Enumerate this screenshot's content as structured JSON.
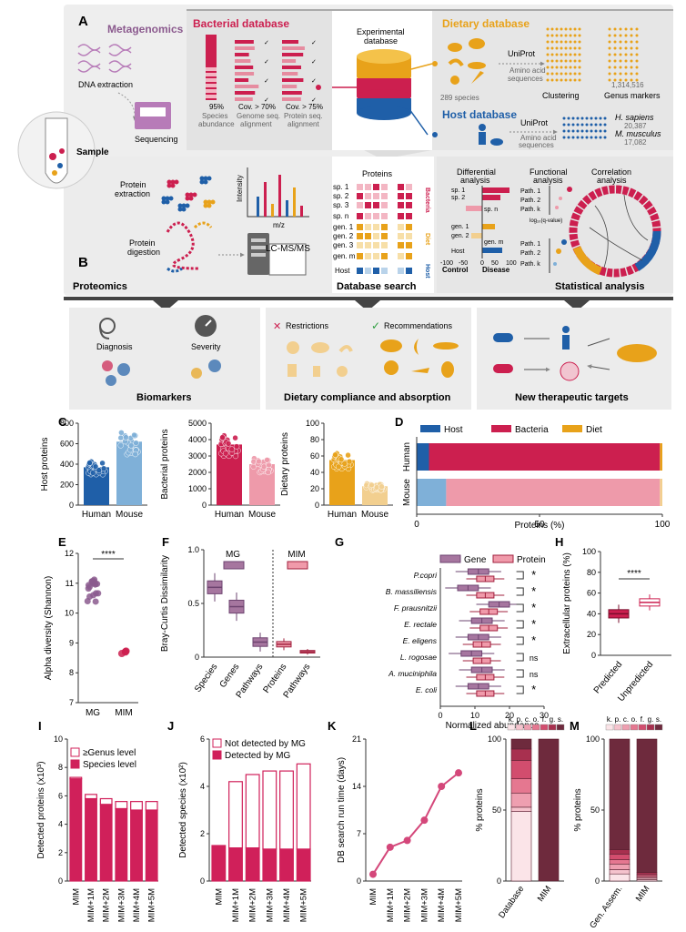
{
  "panel_letters": {
    "A": "A",
    "B": "B",
    "C": "C",
    "D": "D",
    "E": "E",
    "F": "F",
    "G": "G",
    "H": "H",
    "I": "I",
    "J": "J",
    "K": "K",
    "L": "L",
    "M": "M"
  },
  "top": {
    "metagenomics": "Metagenomics",
    "dna_extraction": "DNA extraction",
    "sequencing": "Sequencing",
    "sample": "Sample",
    "bacterial_db": "Bacterial database",
    "stage1_pct": "95%",
    "stage1_l1": "Species",
    "stage1_l2": "abundance",
    "stage2_pct": "Cov. > 70%",
    "stage2_l1": "Genome seq.",
    "stage2_l2": "alignment",
    "stage3_pct": "Cov. > 75%",
    "stage3_l1": "Protein seq.",
    "stage3_l2": "alignment",
    "exp_db_l1": "Experimental",
    "exp_db_l2": "database",
    "dietary_db": "Dietary database",
    "uniprot": "UniProt",
    "aa_l1": "Amino acid",
    "aa_l2": "sequences",
    "species_289": "289 species",
    "clustering": "Clustering",
    "genus_count": "1,314,516",
    "genus_markers": "Genus markers",
    "host_db": "Host database",
    "h_sapiens": "H. sapiens",
    "h_sapiens_n": "20,387",
    "m_musculus": "M. musculus",
    "m_musculus_n": "17,082",
    "protein_extraction": "Protein extraction",
    "protein_digestion": "Protein digestion",
    "intensity": "Intensity",
    "mz": "m/z",
    "lcms": "LC-MS/MS",
    "proteomics": "Proteomics",
    "proteins": "Proteins",
    "sp1": "sp. 1",
    "sp2": "sp. 2",
    "sp3": "sp. 3",
    "spn": "sp. n",
    "gen1": "gen. 1",
    "gen2": "gen. 2",
    "gen3": "gen. 3",
    "genm": "gen. m",
    "host": "Host",
    "side_bacteria": "Bacteria",
    "side_diet": "Diet",
    "side_host": "Host",
    "database_search": "Database search",
    "diff_l1": "Differential",
    "diff_l2": "analysis",
    "func_l1": "Functional",
    "func_l2": "analysis",
    "corr_l1": "Correlation",
    "corr_l2": "analysis",
    "path1": "Path. 1",
    "path2": "Path. 2",
    "pathk": "Path. k",
    "log10q": "log₁₀(q-value)",
    "control": "Control",
    "disease": "Disease",
    "ax_m100": "-100",
    "ax_m50": "-50",
    "ax_0": "0",
    "ax_50": "50",
    "ax_100": "100",
    "statistical": "Statistical analysis",
    "diagnosis": "Diagnosis",
    "severity": "Severity",
    "biomarkers": "Biomarkers",
    "restrictions": "Restrictions",
    "recommendations": "Recommendations",
    "dietary_compliance": "Dietary compliance and absorption",
    "new_targets": "New therapeutic targets"
  },
  "colors": {
    "host": "#1f5fa8",
    "host_light": "#7fb0d8",
    "bacteria": "#cc1f4f",
    "bacteria_light": "#ee9aaa",
    "diet": "#e8a21a",
    "diet_light": "#f2cf8f",
    "mg": "#8b5a8e",
    "gene": "#8b5a8e",
    "protein": "#d94a6a",
    "line": "#d4477a",
    "detected": "#d0205a"
  },
  "chart_data": [
    {
      "id": "C1",
      "type": "bar",
      "categories": [
        "Human",
        "Mouse"
      ],
      "values": [
        370,
        620
      ],
      "ylabel": "Host proteins",
      "ylim": [
        0,
        800
      ],
      "yticks": [
        "0",
        "200",
        "400",
        "600",
        "800"
      ]
    },
    {
      "id": "C2",
      "type": "bar",
      "categories": [
        "Human",
        "Mouse"
      ],
      "values": [
        3700,
        2500
      ],
      "ylabel": "Bacterial proteins",
      "ylim": [
        0,
        5000
      ],
      "yticks": [
        "0",
        "1000",
        "2000",
        "3000",
        "4000",
        "5000"
      ]
    },
    {
      "id": "C3",
      "type": "bar",
      "categories": [
        "Human",
        "Mouse"
      ],
      "values": [
        55,
        23
      ],
      "ylabel": "Dietary proteins",
      "ylim": [
        0,
        100
      ],
      "yticks": [
        "0",
        "20",
        "40",
        "60",
        "80",
        "100"
      ]
    },
    {
      "id": "D",
      "type": "bar",
      "orientation": "horizontal-stacked",
      "categories": [
        "Human",
        "Mouse"
      ],
      "series": [
        {
          "name": "Host",
          "values": [
            5,
            12
          ]
        },
        {
          "name": "Bacteria",
          "values": [
            94,
            87
          ]
        },
        {
          "name": "Diet",
          "values": [
            1,
            1
          ]
        }
      ],
      "xlabel": "Proteins (%)",
      "xticks": [
        "0",
        "50",
        "100"
      ],
      "legend_position": "top"
    },
    {
      "id": "E",
      "type": "scatter",
      "categories": [
        "MG",
        "MIM"
      ],
      "values": [
        10.8,
        8.7
      ],
      "ylabel": "Alpha diversity (Shannon)",
      "ylim": [
        7,
        12
      ],
      "yticks": [
        "7",
        "8",
        "9",
        "10",
        "11",
        "12"
      ],
      "annotation": "****"
    },
    {
      "id": "F",
      "type": "box",
      "categories": [
        "Species",
        "Genes",
        "Pathways",
        "Proteins",
        "Pathways"
      ],
      "medians": [
        0.65,
        0.47,
        0.14,
        0.12,
        0.05
      ],
      "ylabel": "Bray-Curtis Dissimilarity",
      "ylim": [
        0,
        1
      ],
      "yticks": [
        "0",
        "0.5",
        "1.0"
      ],
      "series": [
        {
          "name": "MG"
        },
        {
          "name": "MIM"
        }
      ]
    },
    {
      "id": "G",
      "type": "box",
      "orientation": "horizontal",
      "categories": [
        "P.copri",
        "B. massiliensis",
        "F. prausnitzii",
        "E. rectale",
        "E. eligens",
        "L. rogosae",
        "A. muciniphila",
        "E. coli"
      ],
      "series": [
        {
          "name": "Gene",
          "medians": [
            11,
            8,
            17,
            12,
            11,
            9,
            12,
            11
          ]
        },
        {
          "name": "Protein",
          "medians": [
            13,
            13,
            14,
            14,
            12,
            12,
            13,
            13
          ]
        }
      ],
      "significance": [
        "*",
        "*",
        "*",
        "*",
        "*",
        "ns",
        "ns",
        "*"
      ],
      "xlabel": "Normalized abundance",
      "xticks": [
        "0",
        "10",
        "20",
        "30"
      ]
    },
    {
      "id": "H",
      "type": "box",
      "categories": [
        "Predicted",
        "Unpredicted"
      ],
      "medians": [
        40,
        51
      ],
      "ylabel": "Extracellular proteins (%)",
      "ylim": [
        0,
        100
      ],
      "yticks": [
        "0",
        "20",
        "40",
        "60",
        "80",
        "100"
      ],
      "annotation": "****"
    },
    {
      "id": "I",
      "type": "bar",
      "stacked": true,
      "categories": [
        "MIM",
        "MIM+1M",
        "MIM+2M",
        "MIM+3M",
        "MIM+4M",
        "MIM+5M"
      ],
      "series": [
        {
          "name": "≥Genus level",
          "values": [
            0.1,
            0.3,
            0.4,
            0.5,
            0.6,
            0.6
          ]
        },
        {
          "name": "Species level",
          "values": [
            7.2,
            5.8,
            5.4,
            5.1,
            5.0,
            5.0
          ]
        }
      ],
      "ylabel": "Detected proteins (x10³)",
      "ylim": [
        0,
        10
      ],
      "yticks": [
        "0",
        "2",
        "4",
        "6",
        "8",
        "10"
      ]
    },
    {
      "id": "J",
      "type": "bar",
      "stacked": true,
      "categories": [
        "MIM",
        "MIM+1M",
        "MIM+2M",
        "MIM+3M",
        "MIM+4M",
        "MIM+5M"
      ],
      "series": [
        {
          "name": "Not detected by MG",
          "values": [
            0,
            2.8,
            3.1,
            3.3,
            3.3,
            3.6
          ]
        },
        {
          "name": "Detected by MG",
          "values": [
            1.5,
            1.4,
            1.4,
            1.35,
            1.35,
            1.35
          ]
        }
      ],
      "ylabel": "Detected species (x10²)",
      "ylim": [
        0,
        6
      ],
      "yticks": [
        "0",
        "2",
        "4",
        "6"
      ]
    },
    {
      "id": "K",
      "type": "line",
      "categories": [
        "MIM",
        "MIM+1M",
        "MIM+2M",
        "MIM+3M",
        "MIM+4M",
        "MIM+5M"
      ],
      "values": [
        1,
        5,
        6,
        9,
        14,
        16
      ],
      "ylabel": "DB search run time (days)",
      "ylim": [
        0,
        21
      ],
      "yticks": [
        "0",
        "7",
        "14",
        "21"
      ]
    },
    {
      "id": "L",
      "type": "bar",
      "stacked": true,
      "categories": [
        "Database",
        "MIM"
      ],
      "ranks": [
        "k.",
        "p.",
        "c.",
        "o.",
        "f.",
        "g.",
        "s."
      ],
      "series": [
        {
          "name": "k.",
          "values": [
            49,
            0
          ]
        },
        {
          "name": "p.",
          "values": [
            3,
            0
          ]
        },
        {
          "name": "c.",
          "values": [
            10,
            0
          ]
        },
        {
          "name": "o.",
          "values": [
            10,
            0
          ]
        },
        {
          "name": "f.",
          "values": [
            13,
            0
          ]
        },
        {
          "name": "g.",
          "values": [
            8,
            0
          ]
        },
        {
          "name": "s.",
          "values": [
            7,
            100
          ]
        }
      ],
      "ylabel": "% proteins",
      "ylim": [
        0,
        100
      ],
      "yticks": [
        "0",
        "50",
        "100"
      ]
    },
    {
      "id": "M",
      "type": "bar",
      "stacked": true,
      "categories": [
        "Gen. Assem.",
        "MIM"
      ],
      "ranks": [
        "k.",
        "p.",
        "c.",
        "o.",
        "f.",
        "g.",
        "s."
      ],
      "series": [
        {
          "name": "k.",
          "values": [
            5,
            1
          ]
        },
        {
          "name": "p.",
          "values": [
            3,
            1
          ]
        },
        {
          "name": "c.",
          "values": [
            4,
            1
          ]
        },
        {
          "name": "o.",
          "values": [
            3,
            1
          ]
        },
        {
          "name": "f.",
          "values": [
            4,
            1
          ]
        },
        {
          "name": "g.",
          "values": [
            3,
            1
          ]
        },
        {
          "name": "s.",
          "values": [
            78,
            94
          ]
        }
      ],
      "ylabel": "% proteins",
      "ylim": [
        0,
        100
      ],
      "yticks": [
        "0",
        "50",
        "100"
      ]
    }
  ]
}
